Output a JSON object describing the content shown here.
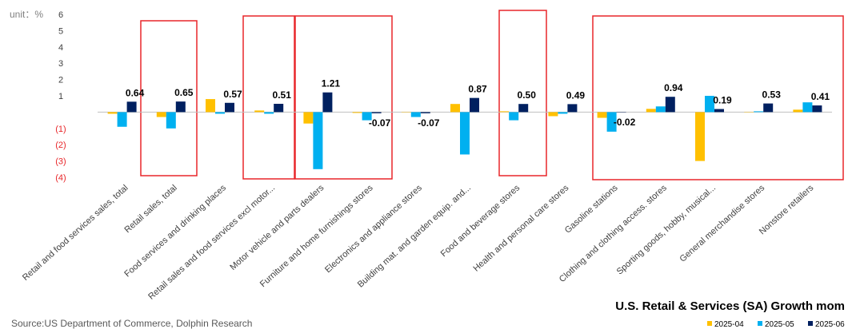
{
  "chart_data": {
    "type": "bar",
    "title": "U.S. Retail & Services (SA) Growth mom",
    "unit_label": "unit：%",
    "source": "Source:US Department of Commerce, Dolphin Research",
    "categories": [
      "Retail and food services sales, total",
      "Retail sales, total",
      "Food services and drinking places",
      "Retail sales and food services excl motor...",
      "Motor vehicle and parts dealers",
      "Furniture and home furnishings stores",
      "Electronics and appliance stores",
      "Building mat. and garden equip. and...",
      "Food and beverage stores",
      "Health and personal care stores",
      "Gasoline stations",
      "Clothing and clothing access. stores",
      "Sporting goods, hobby, musical...",
      "General merchandise stores",
      "Nonstore retailers"
    ],
    "series": [
      {
        "name": "2025-04",
        "color": "#FFC000",
        "values": [
          -0.1,
          -0.3,
          0.8,
          0.1,
          -0.7,
          -0.05,
          0.02,
          0.5,
          0.05,
          -0.25,
          -0.35,
          0.2,
          -3.0,
          0.02,
          0.15
        ]
      },
      {
        "name": "2025-05",
        "color": "#00B0F0",
        "values": [
          -0.9,
          -1.0,
          -0.1,
          -0.1,
          -3.5,
          -0.5,
          -0.3,
          -2.6,
          -0.5,
          -0.1,
          -1.2,
          0.35,
          1.0,
          0.05,
          0.6
        ]
      },
      {
        "name": "2025-06",
        "color": "#002060",
        "values": [
          0.64,
          0.65,
          0.57,
          0.51,
          1.21,
          -0.07,
          -0.07,
          0.87,
          0.5,
          0.49,
          -0.02,
          0.94,
          0.19,
          0.53,
          0.41
        ],
        "value_labels": [
          "0.64",
          "0.65",
          "0.57",
          "0.51",
          "1.21",
          "-0.07",
          "-0.07",
          "0.87",
          "0.50",
          "0.49",
          "-0.02",
          "0.94",
          "0.19",
          "0.53",
          "0.41"
        ]
      }
    ],
    "ylim": [
      -4,
      6
    ],
    "yticks": [
      6,
      5,
      4,
      3,
      2,
      1,
      {
        "value": -1,
        "label": "(1)"
      },
      {
        "value": -2,
        "label": "(2)"
      },
      {
        "value": -3,
        "label": "(3)"
      },
      {
        "value": -4,
        "label": "(4)"
      }
    ],
    "grid": false,
    "legend": "bottom-right"
  }
}
